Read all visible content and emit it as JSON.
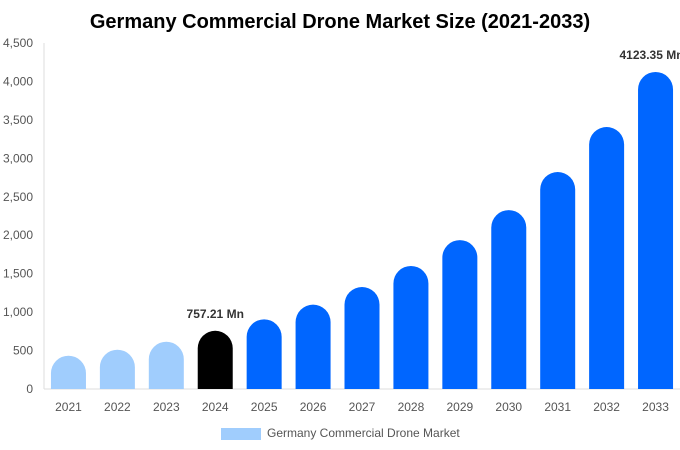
{
  "chart_data": {
    "type": "bar",
    "title": "Germany Commercial Drone Market Size (2021-2033)",
    "categories": [
      "2021",
      "2022",
      "2023",
      "2024",
      "2025",
      "2026",
      "2027",
      "2028",
      "2029",
      "2030",
      "2031",
      "2032",
      "2033"
    ],
    "series": [
      {
        "name": "Germany Commercial Drone Market",
        "values": [
          433,
          511,
          615,
          757.21,
          906,
          1097,
          1326,
          1600,
          1937,
          2327,
          2822,
          3407,
          4123.35
        ]
      }
    ],
    "data_labels": [
      {
        "category": "2024",
        "text": "757.21 Mn"
      },
      {
        "category": "2033",
        "text": "4123.35 Mn"
      }
    ],
    "ylim": [
      0,
      4500
    ],
    "yticks": [
      "0",
      "500",
      "1,000",
      "1,500",
      "2,000",
      "2,500",
      "3,000",
      "3,500",
      "4,000",
      "4,500"
    ],
    "grid": false,
    "legend": "bottom",
    "colors": {
      "historic": "#a0cdfd",
      "current": "#000000",
      "forecast": "#0066ff"
    },
    "bar_color_groups": [
      "historic",
      "historic",
      "historic",
      "current",
      "forecast",
      "forecast",
      "forecast",
      "forecast",
      "forecast",
      "forecast",
      "forecast",
      "forecast",
      "forecast"
    ]
  }
}
